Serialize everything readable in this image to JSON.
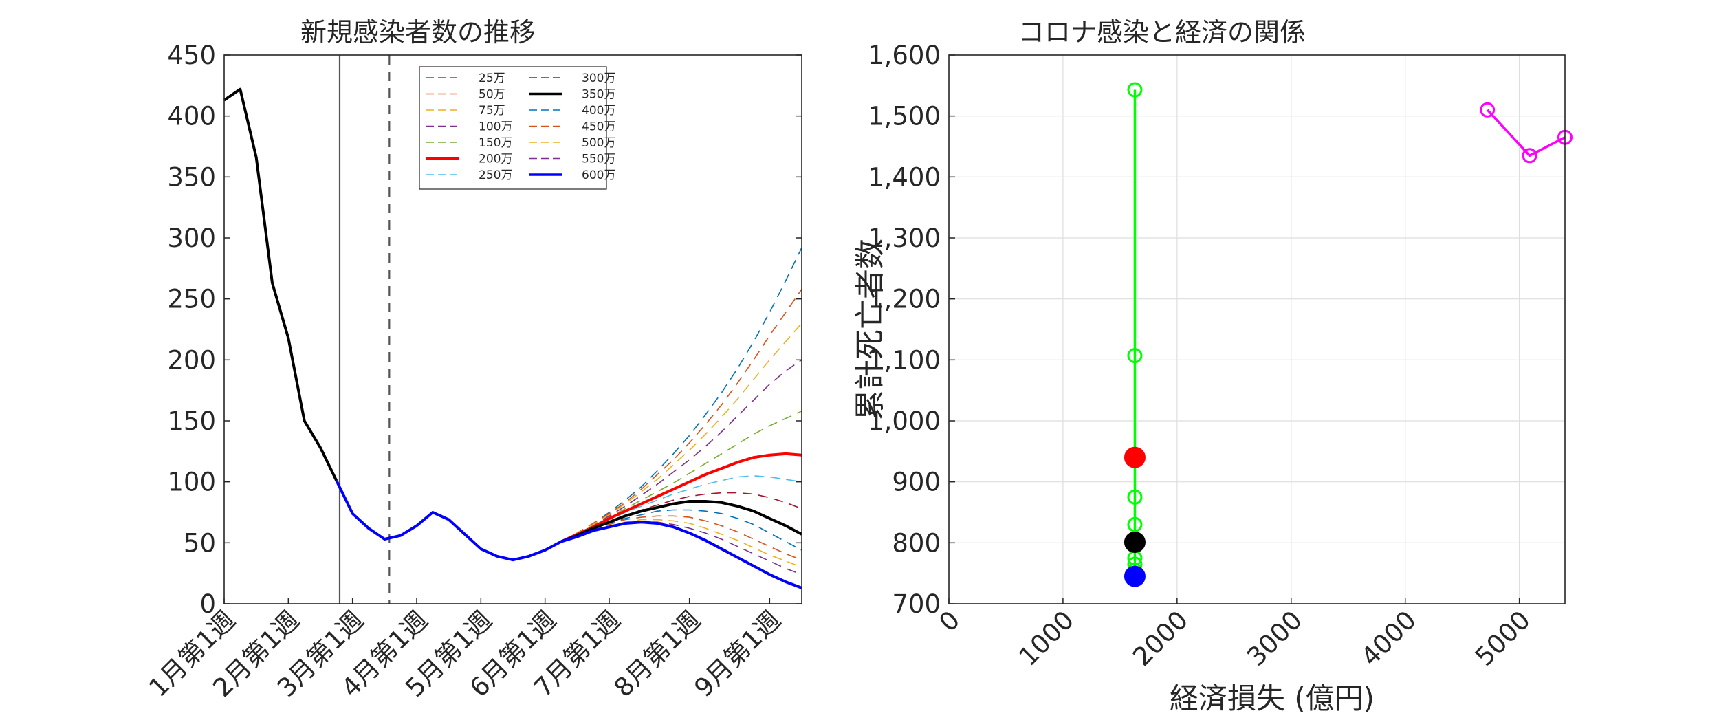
{
  "chart_data": [
    {
      "type": "line",
      "title": "新規感染者数の推移",
      "xlabel": "",
      "ylabel": "",
      "ylim": [
        0,
        450
      ],
      "yticks": [
        0,
        50,
        100,
        150,
        200,
        250,
        300,
        350,
        400,
        450
      ],
      "xlim": [
        0,
        36
      ],
      "xtick_positions": [
        0,
        4,
        8,
        12,
        16,
        20,
        24,
        29,
        34
      ],
      "xtick_labels": [
        "1月第1週",
        "2月第1週",
        "3月第1週",
        "4月第1週",
        "5月第1週",
        "6月第1週",
        "7月第1週",
        "8月第1週",
        "9月第1週"
      ],
      "grid": false,
      "legend_position": "top-center",
      "vlines": [
        {
          "x": 7.2,
          "style": "solid",
          "color": "#555555"
        },
        {
          "x": 10.3,
          "style": "dashed",
          "color": "#555555"
        }
      ],
      "history": {
        "x": [
          0,
          1,
          2,
          3,
          4,
          5,
          6,
          7,
          8,
          9,
          10,
          11,
          12,
          13,
          14,
          15,
          16,
          17,
          18,
          19,
          20,
          21
        ],
        "values": [
          413,
          422,
          366,
          263,
          218,
          150,
          128,
          101,
          74,
          62,
          53,
          56,
          64,
          75,
          69,
          57,
          45,
          39,
          36,
          39,
          44,
          51
        ],
        "color_segments": [
          {
            "to_x": 7,
            "color": "#000000"
          },
          {
            "to_x": 21,
            "color": "#0000ff"
          }
        ]
      },
      "scenario_start_x": 21,
      "scenario_start_value": 51,
      "scenario_x": [
        21,
        22,
        23,
        24,
        25,
        26,
        27,
        28,
        29,
        30,
        31,
        32,
        33,
        34,
        35,
        36
      ],
      "series": [
        {
          "name": "25万",
          "color": "#0072BD",
          "style": "dashed",
          "end": 292
        },
        {
          "name": "50万",
          "color": "#D95319",
          "style": "dashed",
          "end": 258
        },
        {
          "name": "75万",
          "color": "#EDB120",
          "style": "dashed",
          "end": 230
        },
        {
          "name": "100万",
          "color": "#7E2F8E",
          "style": "dashed",
          "end": 200
        },
        {
          "name": "150万",
          "color": "#77AC30",
          "style": "dashed",
          "end": 158
        },
        {
          "name": "200万",
          "color": "#ff0000",
          "style": "solid",
          "end": 122
        },
        {
          "name": "250万",
          "color": "#4DBEEE",
          "style": "dashed",
          "end": 100
        },
        {
          "name": "300万",
          "color": "#A2142F",
          "style": "dashed",
          "end": 78
        },
        {
          "name": "350万",
          "color": "#000000",
          "style": "solid",
          "end": 57
        },
        {
          "name": "400万",
          "color": "#0072BD",
          "style": "dashed",
          "end": 44
        },
        {
          "name": "450万",
          "color": "#D95319",
          "style": "dashed",
          "end": 36
        },
        {
          "name": "500万",
          "color": "#EDB120",
          "style": "dashed",
          "end": 30
        },
        {
          "name": "550万",
          "color": "#7E2F8E",
          "style": "dashed",
          "end": 24
        },
        {
          "name": "600万",
          "color": "#0000ff",
          "style": "solid",
          "end": 13
        }
      ],
      "scenario_curves": {
        "25万": [
          51,
          58,
          66,
          75,
          85,
          96,
          109,
          123,
          138,
          155,
          173,
          193,
          215,
          239,
          265,
          292
        ],
        "50万": [
          51,
          58,
          66,
          74,
          83,
          94,
          106,
          118,
          132,
          147,
          163,
          181,
          200,
          220,
          239,
          258
        ],
        "75万": [
          51,
          58,
          65,
          73,
          82,
          92,
          102,
          114,
          126,
          139,
          153,
          168,
          184,
          200,
          215,
          230
        ],
        "100万": [
          51,
          57,
          64,
          72,
          80,
          89,
          98,
          108,
          118,
          129,
          141,
          154,
          167,
          180,
          191,
          200
        ],
        "150万": [
          51,
          57,
          64,
          71,
          78,
          85,
          92,
          99,
          107,
          115,
          123,
          131,
          139,
          146,
          152,
          158
        ],
        "200万": [
          51,
          57,
          63,
          70,
          76,
          82,
          88,
          94,
          100,
          106,
          111,
          116,
          120,
          122,
          123,
          122
        ],
        "250万": [
          51,
          57,
          63,
          69,
          75,
          80,
          85,
          90,
          94,
          98,
          101,
          104,
          105,
          104,
          102,
          100
        ],
        "300万": [
          51,
          56,
          62,
          67,
          72,
          77,
          81,
          85,
          88,
          90,
          91,
          91,
          90,
          87,
          83,
          78
        ],
        "350万": [
          51,
          56,
          62,
          67,
          72,
          76,
          79,
          82,
          84,
          84,
          83,
          80,
          76,
          70,
          64,
          57
        ],
        "400万": [
          51,
          56,
          61,
          66,
          70,
          73,
          76,
          77,
          77,
          76,
          74,
          70,
          65,
          58,
          51,
          44
        ],
        "450万": [
          51,
          56,
          61,
          65,
          69,
          71,
          72,
          72,
          71,
          68,
          64,
          59,
          53,
          47,
          41,
          36
        ],
        "500万": [
          51,
          56,
          60,
          64,
          67,
          69,
          69,
          68,
          66,
          62,
          57,
          52,
          46,
          40,
          35,
          30
        ],
        "550万": [
          51,
          55,
          60,
          63,
          66,
          67,
          67,
          65,
          62,
          58,
          53,
          47,
          41,
          35,
          29,
          24
        ],
        "600万": [
          51,
          55,
          60,
          63,
          66,
          67,
          66,
          63,
          58,
          52,
          45,
          38,
          31,
          24,
          18,
          13
        ]
      }
    },
    {
      "type": "scatter",
      "title": "コロナ感染と経済の関係",
      "xlabel": "経済損失 (億円)",
      "ylabel": "累計死亡者数",
      "xlim": [
        0,
        5400
      ],
      "ylim": [
        700,
        1600
      ],
      "xticks": [
        0,
        1000,
        2000,
        3000,
        4000,
        5000
      ],
      "yticks": [
        700,
        800,
        900,
        1000,
        1100,
        1200,
        1300,
        1400,
        1500,
        1600
      ],
      "ytick_labels": [
        "700",
        "800",
        "900",
        "1,000",
        "1,100",
        "1,200",
        "1,300",
        "1,400",
        "1,500",
        "1,600"
      ],
      "grid": true,
      "green_series": {
        "color": "#00ff00",
        "points": [
          {
            "x": 1630,
            "y": 1543
          },
          {
            "x": 1630,
            "y": 1107
          },
          {
            "x": 1630,
            "y": 875
          },
          {
            "x": 1630,
            "y": 830
          },
          {
            "x": 1630,
            "y": 800
          },
          {
            "x": 1630,
            "y": 775
          },
          {
            "x": 1630,
            "y": 765
          },
          {
            "x": 1630,
            "y": 755
          }
        ]
      },
      "magenta_series": {
        "color": "#ff00ff",
        "points": [
          {
            "x": 4720,
            "y": 1510
          },
          {
            "x": 5090,
            "y": 1435
          },
          {
            "x": 5400,
            "y": 1465
          }
        ]
      },
      "highlight_points": [
        {
          "x": 1630,
          "y": 940,
          "color": "#ff0000"
        },
        {
          "x": 1630,
          "y": 801,
          "color": "#000000"
        },
        {
          "x": 1630,
          "y": 745,
          "color": "#0000ff"
        }
      ]
    }
  ]
}
